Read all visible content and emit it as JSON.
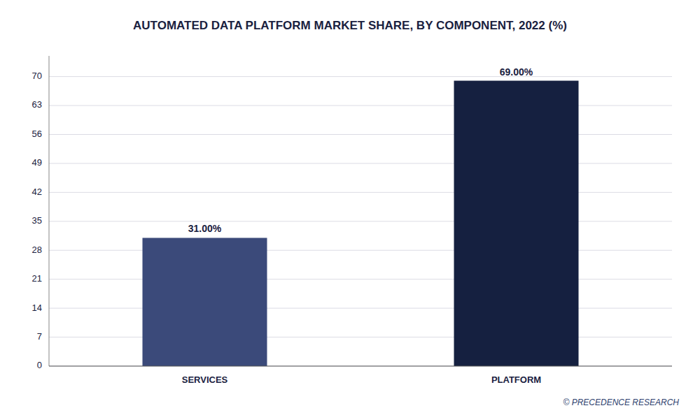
{
  "chart_data": {
    "type": "bar",
    "title": "AUTOMATED DATA PLATFORM MARKET SHARE, BY COMPONENT, 2022 (%)",
    "categories": [
      "SERVICES",
      "PLATFORM"
    ],
    "values": [
      31.0,
      69.0
    ],
    "value_labels": [
      "31.00%",
      "69.00%"
    ],
    "data_labels": true,
    "colors": [
      "#3b4a7a",
      "#152040"
    ],
    "ylim": [
      0,
      75
    ],
    "yticks": [
      0,
      7,
      14,
      21,
      28,
      35,
      42,
      49,
      56,
      63,
      70
    ],
    "grid": true,
    "annotations": [
      "© PRECEDENCE RESEARCH"
    ]
  }
}
